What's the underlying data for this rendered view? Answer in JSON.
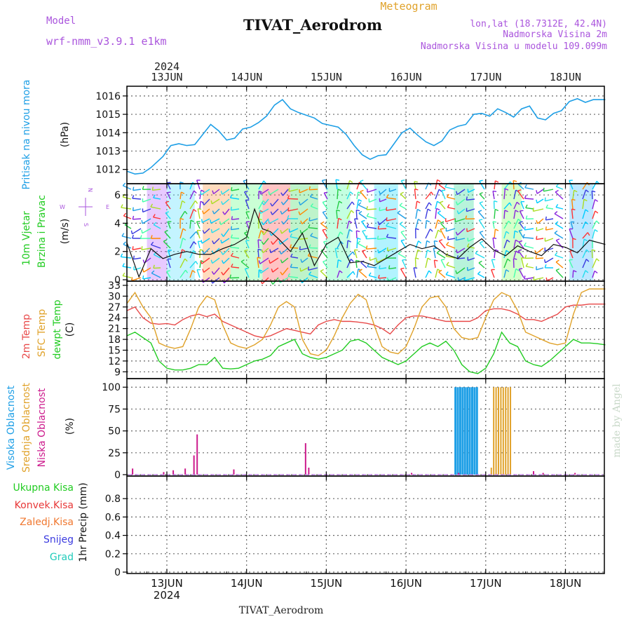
{
  "header": {
    "model_label": "Model",
    "model_name": "wrf-nmm_v3.9.1 e1km",
    "title": "TIVAT_Aerodrom",
    "subtitle": "Meteogram",
    "lonlat": "lon,lat (18.7312E, 42.4N)",
    "elevation": "Nadmorska Visina 2m",
    "model_elevation": "Nadmorska Visina u modelu 109.099m",
    "footer_title": "TIVAT_Aerodrom",
    "watermark": "made by Angel",
    "year": "2024"
  },
  "axis": {
    "days": [
      "13JUN",
      "14JUN",
      "15JUN",
      "16JUN",
      "17JUN",
      "18JUN"
    ]
  },
  "panels": {
    "pressure": {
      "label": "Pritisak na nivou mora",
      "unit": "(hPa)"
    },
    "wind": {
      "label1": "10m Vjetar",
      "label2": "Brzina i Pravac",
      "unit": "(m/s)",
      "compass": {
        "n": "N",
        "s": "S",
        "e": "E",
        "w": "W"
      }
    },
    "temp": {
      "label1": "2m Temp",
      "label2": "SFC Temp",
      "label3": "dewpt Temp",
      "unit": "(C)"
    },
    "cloud": {
      "label1": "Visoka Oblacnost",
      "label2": "Srednja Oblacnost",
      "label3": "Niska Oblacnost",
      "unit": "(%)"
    },
    "precip": {
      "label1": "Ukupna Kisa",
      "label2": "Konvek.Kisa",
      "label3": "Zaledj.Kisa",
      "label4": "Snijeg",
      "label5": "Grad",
      "unit": "1hr Precip (mm)"
    }
  },
  "colors": {
    "pressure": "#1e9fe6",
    "temp2m": "#e84a4a",
    "sfc": "#e0a22a",
    "dewpt": "#22cc22",
    "high_cloud": "#1e9fe6",
    "mid_cloud": "#e0a22a",
    "low_cloud": "#cc1a8c",
    "purple": "#aa55dd",
    "total_rain": "#22cc22",
    "conv_rain": "#e83838",
    "freezing": "#f07830",
    "snow": "#3a3ae0",
    "hail": "#22ccbb"
  },
  "chart_data": [
    {
      "type": "line",
      "name": "pressure",
      "x_unit": "days from 12 JUN 2024 00 UTC",
      "ylim": [
        1011.3,
        1016.3
      ],
      "yticks": [
        1012,
        1013,
        1014,
        1015,
        1016
      ],
      "x": [
        0.5,
        0.6,
        0.7,
        0.8,
        0.95,
        1.05,
        1.15,
        1.25,
        1.35,
        1.45,
        1.55,
        1.65,
        1.75,
        1.85,
        1.95,
        2.05,
        2.15,
        2.25,
        2.35,
        2.45,
        2.55,
        2.65,
        2.75,
        2.85,
        2.95,
        3.05,
        3.15,
        3.25,
        3.35,
        3.45,
        3.55,
        3.65,
        3.75,
        3.85,
        3.95,
        4.05,
        4.15,
        4.25,
        4.35,
        4.45,
        4.55,
        4.65,
        4.75,
        4.85,
        4.95,
        5.05,
        5.15,
        5.25,
        5.35,
        5.45,
        5.55,
        5.65,
        5.75,
        5.85,
        5.95,
        6.05,
        6.15,
        6.25,
        6.35,
        6.5
      ],
      "values": [
        1011.9,
        1011.75,
        1011.8,
        1012.1,
        1012.7,
        1013.3,
        1013.4,
        1013.3,
        1013.35,
        1013.9,
        1014.45,
        1014.1,
        1013.6,
        1013.7,
        1014.2,
        1014.3,
        1014.55,
        1014.9,
        1015.5,
        1015.8,
        1015.3,
        1015.1,
        1014.95,
        1014.8,
        1014.5,
        1014.4,
        1014.3,
        1013.9,
        1013.3,
        1012.8,
        1012.55,
        1012.75,
        1012.8,
        1013.4,
        1014.0,
        1014.25,
        1013.85,
        1013.5,
        1013.3,
        1013.55,
        1014.15,
        1014.35,
        1014.45,
        1015.0,
        1015.05,
        1014.9,
        1015.3,
        1015.1,
        1014.85,
        1015.3,
        1015.45,
        1014.8,
        1014.7,
        1015.05,
        1015.2,
        1015.7,
        1015.85,
        1015.65,
        1015.8,
        1015.8
      ]
    },
    {
      "type": "scatter",
      "name": "10m wind speed",
      "ylim": [
        0,
        6.5
      ],
      "yticks": [
        0,
        2,
        4,
        6
      ],
      "x": [
        0.5,
        0.65,
        0.8,
        0.95,
        1.1,
        1.25,
        1.4,
        1.55,
        1.7,
        1.85,
        2.0,
        2.1,
        2.2,
        2.3,
        2.4,
        2.55,
        2.7,
        2.85,
        3.0,
        3.15,
        3.3,
        3.45,
        3.6,
        3.75,
        3.9,
        4.05,
        4.2,
        4.35,
        4.5,
        4.65,
        4.8,
        4.95,
        5.1,
        5.25,
        5.4,
        5.55,
        5.7,
        5.85,
        6.0,
        6.15,
        6.3,
        6.5
      ],
      "values": [
        2.6,
        0.2,
        2.2,
        1.5,
        1.8,
        2.0,
        1.8,
        1.8,
        2.2,
        2.5,
        3.0,
        5.0,
        3.6,
        3.4,
        2.9,
        2.0,
        3.3,
        1.0,
        2.5,
        3.0,
        1.2,
        1.3,
        1.0,
        1.5,
        2.0,
        2.5,
        2.2,
        2.4,
        1.8,
        1.5,
        2.3,
        2.9,
        2.1,
        1.7,
        2.4,
        2.0,
        1.7,
        2.5,
        2.3,
        1.9,
        2.8,
        2.5
      ]
    },
    {
      "type": "line",
      "name": "temperature",
      "ylim": [
        7.5,
        33
      ],
      "yticks": [
        9,
        12,
        15,
        18,
        21,
        24,
        27,
        30,
        33
      ],
      "x": [
        0.5,
        0.6,
        0.7,
        0.8,
        0.9,
        1.0,
        1.1,
        1.2,
        1.3,
        1.4,
        1.5,
        1.6,
        1.7,
        1.8,
        1.9,
        2.0,
        2.1,
        2.2,
        2.3,
        2.4,
        2.5,
        2.6,
        2.7,
        2.8,
        2.9,
        3.0,
        3.1,
        3.2,
        3.3,
        3.4,
        3.5,
        3.6,
        3.7,
        3.8,
        3.9,
        4.0,
        4.1,
        4.2,
        4.3,
        4.4,
        4.5,
        4.6,
        4.7,
        4.8,
        4.9,
        5.0,
        5.1,
        5.2,
        5.3,
        5.4,
        5.5,
        5.6,
        5.7,
        5.8,
        5.9,
        6.0,
        6.1,
        6.2,
        6.3,
        6.4,
        6.5
      ],
      "series": [
        {
          "name": "2m Temp",
          "values": [
            26,
            27,
            24,
            22.5,
            22.2,
            22.4,
            22,
            23.5,
            24.5,
            25,
            24.3,
            25,
            23,
            22,
            21,
            20,
            19,
            18.5,
            19,
            20,
            21,
            20.5,
            20,
            19.5,
            22,
            23,
            23.5,
            23,
            23,
            22.8,
            22.5,
            22,
            21,
            19.5,
            22,
            24,
            24.5,
            24.5,
            24,
            23.5,
            23,
            23,
            23,
            23,
            24,
            26,
            26.5,
            26.5,
            26,
            25,
            23.5,
            23.5,
            23,
            24,
            25,
            27,
            27.5,
            27.5,
            27.8,
            27.8,
            27.8
          ]
        },
        {
          "name": "SFC Temp",
          "values": [
            28,
            31,
            27,
            24,
            17,
            16,
            15.5,
            16,
            21,
            27,
            30,
            29,
            22,
            17,
            16,
            15.5,
            16.5,
            18,
            22,
            27,
            28.5,
            27,
            18,
            14,
            13.5,
            15,
            19,
            24,
            28,
            30.5,
            29,
            22,
            16,
            14.5,
            14,
            16,
            21,
            27,
            29.5,
            30,
            27,
            21,
            18.5,
            18,
            18.5,
            24,
            29,
            31,
            30,
            26,
            20,
            19,
            18,
            17,
            16.5,
            17,
            25,
            31,
            32,
            32,
            32
          ]
        },
        {
          "name": "dewpt Temp",
          "values": [
            19,
            20,
            18.5,
            17,
            12,
            10,
            9.5,
            9.5,
            10,
            11,
            11,
            13,
            10,
            9.8,
            10,
            11,
            12,
            12.5,
            13.5,
            16,
            17,
            18,
            14,
            13,
            12.5,
            13,
            14,
            15,
            17.5,
            18,
            17,
            15,
            13,
            12,
            11,
            12,
            14,
            16,
            17,
            16,
            17.5,
            15,
            11,
            9,
            8.5,
            10,
            14,
            20,
            17,
            16,
            12,
            11,
            10.5,
            12,
            14,
            16,
            18,
            17,
            17,
            16.8,
            16.5
          ]
        }
      ]
    },
    {
      "type": "bar",
      "name": "cloud cover",
      "ylim": [
        0,
        105
      ],
      "yticks": [
        0,
        25,
        50,
        75,
        100
      ],
      "series": [
        {
          "name": "Visoka Oblacnost",
          "x": [
            4.62,
            4.65,
            4.68,
            4.71,
            4.74,
            4.77,
            4.8,
            4.83,
            4.86,
            4.89
          ],
          "values": [
            100,
            100,
            100,
            100,
            100,
            100,
            100,
            100,
            100,
            100
          ]
        },
        {
          "name": "Srednja Oblacnost",
          "x": [
            5.07,
            5.1,
            5.13,
            5.16,
            5.19,
            5.22,
            5.25,
            5.28,
            5.31
          ],
          "values": [
            8,
            100,
            100,
            100,
            100,
            100,
            100,
            100,
            100
          ]
        },
        {
          "name": "Niska Oblacnost",
          "x": [
            0.57,
            0.96,
            1.08,
            1.23,
            1.34,
            1.38,
            1.84,
            2.74,
            2.78,
            4.07,
            4.66,
            5.6,
            5.72,
            6.12
          ],
          "values": [
            7,
            3,
            5,
            7,
            22,
            46,
            6,
            36,
            8,
            2,
            2,
            4,
            2,
            2
          ]
        }
      ]
    },
    {
      "type": "bar",
      "name": "1hr precipitation",
      "ylim": [
        0,
        1.0
      ],
      "yticks": [
        0,
        0.2,
        0.4,
        0.6,
        0.8
      ],
      "values": []
    }
  ]
}
